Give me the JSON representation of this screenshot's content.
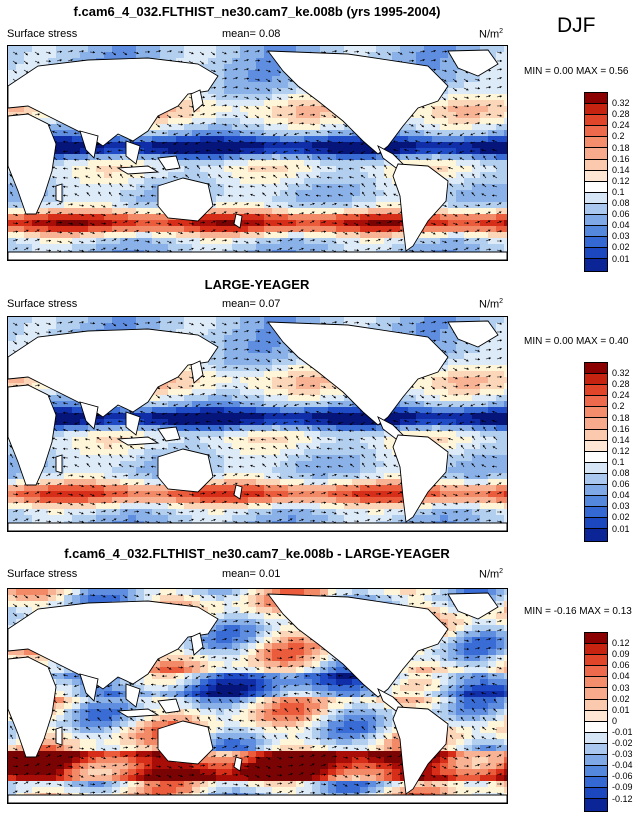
{
  "season": "DJF",
  "colors": {
    "ocean_pos": [
      "#fff6d9",
      "#fbd6b8",
      "#f7b394",
      "#f28a67",
      "#ea5c3c",
      "#d62e18",
      "#a80d07",
      "#7a0403"
    ],
    "ocean_neg": [
      "#ddeaf8",
      "#b3cff0",
      "#8ab1e8",
      "#5f8ee0",
      "#3a6cd6",
      "#1f4cc6",
      "#0f2ea8",
      "#06157a"
    ],
    "land": "#ffffff",
    "coast": "#000000"
  },
  "panels": [
    {
      "title": "f.cam6_4_032.FLTHIST_ne30.cam7_ke.008b (yrs 1995-2004)",
      "variable": "Surface stress",
      "mean_label": "mean=",
      "mean": "0.08",
      "units": "N/m",
      "units_sup": "2",
      "minmax": "MIN =   0.00 MAX =   0.56",
      "colorbar_labels": [
        "0.32",
        "0.28",
        "0.24",
        "0.2",
        "0.18",
        "0.16",
        "0.14",
        "0.12",
        "0.1",
        "0.08",
        "0.06",
        "0.04",
        "0.03",
        "0.02",
        "0.01"
      ],
      "colorbar_colors": [
        "#8b0000",
        "#c62410",
        "#e0452a",
        "#ee6a4c",
        "#f48d6c",
        "#f7ab8c",
        "#fbc9ae",
        "#fde7d4",
        "#ffffff",
        "#d6e6f7",
        "#aac8ef",
        "#7ea9e6",
        "#5488dc",
        "#3468d2",
        "#1c48bf",
        "#0b2596"
      ],
      "kind": "mean"
    },
    {
      "title": "LARGE-YEAGER",
      "variable": "Surface stress",
      "mean_label": "mean=",
      "mean": "0.07",
      "units": "N/m",
      "units_sup": "2",
      "minmax": "MIN =   0.00 MAX =   0.40",
      "colorbar_labels": [
        "0.32",
        "0.28",
        "0.24",
        "0.2",
        "0.18",
        "0.16",
        "0.14",
        "0.12",
        "0.1",
        "0.08",
        "0.06",
        "0.04",
        "0.03",
        "0.02",
        "0.01"
      ],
      "colorbar_colors": [
        "#8b0000",
        "#c62410",
        "#e0452a",
        "#ee6a4c",
        "#f48d6c",
        "#f7ab8c",
        "#fbc9ae",
        "#fde7d4",
        "#ffffff",
        "#d6e6f7",
        "#aac8ef",
        "#7ea9e6",
        "#5488dc",
        "#3468d2",
        "#1c48bf",
        "#0b2596"
      ],
      "kind": "obs"
    },
    {
      "title": "f.cam6_4_032.FLTHIST_ne30.cam7_ke.008b - LARGE-YEAGER",
      "variable": "Surface stress",
      "mean_label": "mean=",
      "mean": "0.01",
      "units": "N/m",
      "units_sup": "2",
      "minmax": "MIN =  -0.16 MAX =   0.13",
      "colorbar_labels": [
        "0.12",
        "0.09",
        "0.06",
        "0.04",
        "0.03",
        "0.02",
        "0.01",
        "0",
        "-0.01",
        "-0.02",
        "-0.03",
        "-0.04",
        "-0.06",
        "-0.09",
        "-0.12"
      ],
      "colorbar_colors": [
        "#8b0000",
        "#c62410",
        "#e0452a",
        "#ee6a4c",
        "#f48d6c",
        "#f7ab8c",
        "#fbc9ae",
        "#fde7d4",
        "#ffffff",
        "#d6e6f7",
        "#aac8ef",
        "#7ea9e6",
        "#5488dc",
        "#3468d2",
        "#1c48bf",
        "#0b2596"
      ],
      "kind": "diff"
    }
  ]
}
